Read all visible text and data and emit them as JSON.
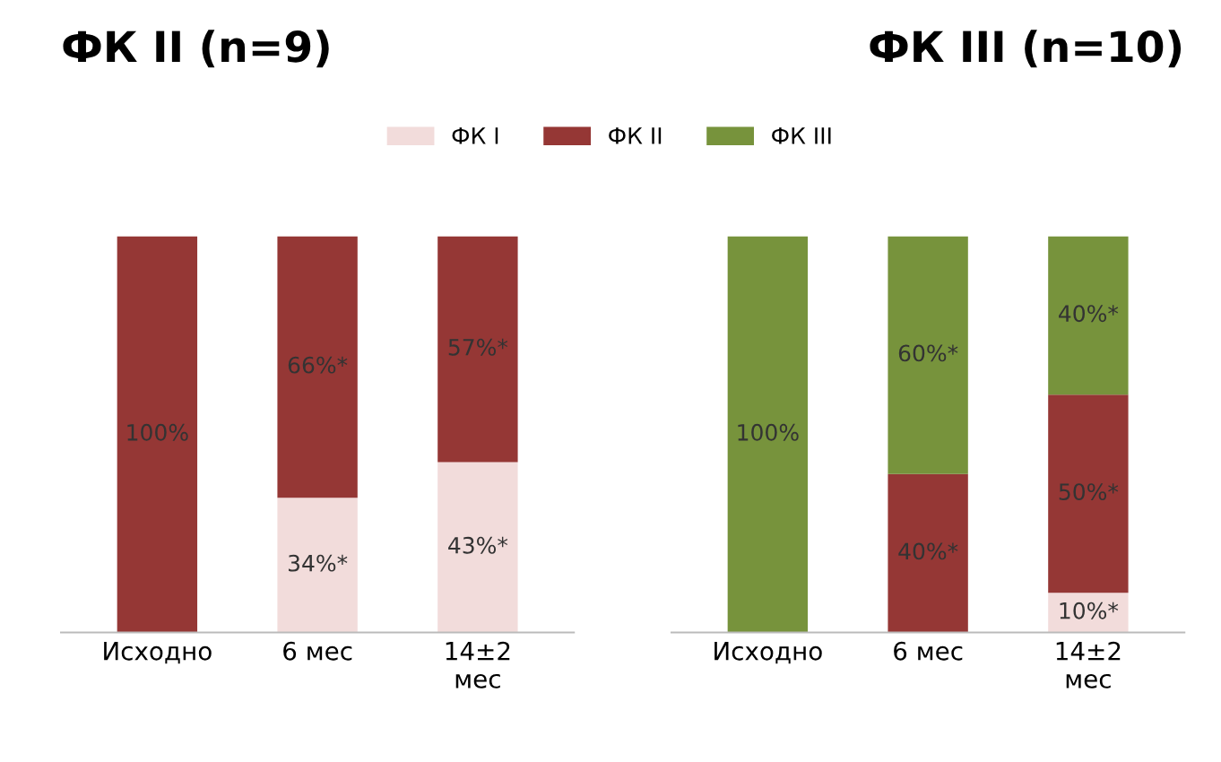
{
  "chart_data": [
    {
      "type": "bar",
      "stacked": true,
      "title": "ФК II (n=9)",
      "categories": [
        "Исходно",
        "6 мес",
        "14±2\nмес"
      ],
      "ylim": [
        0,
        100
      ],
      "legend": "top",
      "tick_labels": "x",
      "series": [
        {
          "name": "ФК I",
          "color": "#f2dcdb",
          "values": [
            0,
            34,
            43
          ],
          "value_labels": [
            null,
            "34%*",
            "43%*"
          ]
        },
        {
          "name": "ФК II",
          "color": "#953735",
          "values": [
            100,
            66,
            57
          ],
          "value_labels": [
            "100%",
            "66%*",
            "57%*"
          ]
        },
        {
          "name": "ФК III",
          "color": "#77933c",
          "values": [
            0,
            0,
            0
          ],
          "value_labels": [
            null,
            null,
            null
          ]
        }
      ]
    },
    {
      "type": "bar",
      "stacked": true,
      "title": "ФК III (n=10)",
      "categories": [
        "Исходно",
        "6 мес",
        "14±2\nмес"
      ],
      "ylim": [
        0,
        100
      ],
      "tick_labels": "x",
      "series": [
        {
          "color": "#f2dcdb",
          "values": [
            0,
            0,
            10
          ],
          "value_labels": [
            null,
            null,
            "10%*"
          ]
        },
        {
          "color": "#953735",
          "values": [
            0,
            40,
            50
          ],
          "value_labels": [
            null,
            "40%*",
            "50%*"
          ]
        },
        {
          "color": "#77933c",
          "values": [
            100,
            60,
            40
          ],
          "value_labels": [
            "100%",
            "60%*",
            "40%*"
          ]
        }
      ]
    }
  ]
}
